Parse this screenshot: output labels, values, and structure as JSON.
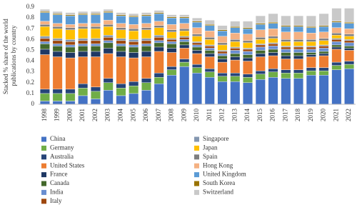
{
  "chart_data": {
    "type": "stacked_bar",
    "ylabel": [
      "Stacked % share of the world",
      "publications by country"
    ],
    "categories": [
      "1998",
      "1999",
      "2000",
      "2001",
      "2002",
      "2003",
      "2004",
      "2005",
      "2006",
      "2007",
      "2008",
      "2009",
      "2010",
      "2011",
      "2012",
      "2013",
      "2014",
      "2015",
      "2016",
      "2017",
      "2018",
      "2019",
      "2020",
      "2021",
      "2022"
    ],
    "ylim": [
      0,
      0.9
    ],
    "yticks": [
      0,
      0.1,
      0.2,
      0.3,
      0.4,
      0.5,
      0.6,
      0.7,
      0.8,
      0.9
    ],
    "series": [
      {
        "name": "China",
        "color": "#4472c4",
        "values": [
          0.03,
          0.03,
          0.03,
          0.08,
          0.05,
          0.13,
          0.08,
          0.1,
          0.13,
          0.19,
          0.27,
          0.35,
          0.29,
          0.25,
          0.21,
          0.21,
          0.2,
          0.23,
          0.25,
          0.24,
          0.24,
          0.27,
          0.27,
          0.32,
          0.33
        ]
      },
      {
        "name": "Germany",
        "color": "#70ad47",
        "values": [
          0.07,
          0.07,
          0.07,
          0.07,
          0.07,
          0.07,
          0.07,
          0.07,
          0.07,
          0.06,
          0.05,
          0.04,
          0.05,
          0.05,
          0.05,
          0.05,
          0.05,
          0.05,
          0.05,
          0.05,
          0.05,
          0.04,
          0.04,
          0.04,
          0.04
        ]
      },
      {
        "name": "Australia",
        "color": "#264478",
        "values": [
          0.04,
          0.04,
          0.04,
          0.04,
          0.04,
          0.04,
          0.04,
          0.04,
          0.04,
          0.04,
          0.03,
          0.03,
          0.03,
          0.03,
          0.03,
          0.03,
          0.03,
          0.03,
          0.03,
          0.03,
          0.03,
          0.03,
          0.03,
          0.03,
          0.03
        ]
      },
      {
        "name": "United States",
        "color": "#ed7d31",
        "values": [
          0.32,
          0.3,
          0.29,
          0.25,
          0.28,
          0.23,
          0.25,
          0.22,
          0.2,
          0.2,
          0.13,
          0.1,
          0.1,
          0.11,
          0.1,
          0.12,
          0.12,
          0.13,
          0.12,
          0.1,
          0.1,
          0.1,
          0.11,
          0.12,
          0.1
        ]
      },
      {
        "name": "France",
        "color": "#1f3864",
        "values": [
          0.05,
          0.05,
          0.05,
          0.05,
          0.05,
          0.05,
          0.05,
          0.05,
          0.05,
          0.04,
          0.04,
          0.03,
          0.03,
          0.03,
          0.03,
          0.03,
          0.03,
          0.03,
          0.03,
          0.03,
          0.03,
          0.02,
          0.02,
          0.02,
          0.02
        ]
      },
      {
        "name": "Canada",
        "color": "#43682b",
        "values": [
          0.05,
          0.05,
          0.05,
          0.05,
          0.05,
          0.05,
          0.05,
          0.05,
          0.05,
          0.04,
          0.04,
          0.03,
          0.03,
          0.03,
          0.03,
          0.03,
          0.03,
          0.03,
          0.03,
          0.03,
          0.03,
          0.02,
          0.02,
          0.02,
          0.02
        ]
      },
      {
        "name": "India",
        "color": "#698ed0",
        "values": [
          0.02,
          0.02,
          0.02,
          0.02,
          0.02,
          0.02,
          0.02,
          0.02,
          0.02,
          0.02,
          0.02,
          0.02,
          0.02,
          0.02,
          0.02,
          0.03,
          0.03,
          0.03,
          0.03,
          0.03,
          0.03,
          0.03,
          0.03,
          0.03,
          0.03
        ]
      },
      {
        "name": "Italy",
        "color": "#9e480e",
        "values": [
          0.03,
          0.03,
          0.03,
          0.03,
          0.03,
          0.03,
          0.03,
          0.03,
          0.03,
          0.03,
          0.02,
          0.02,
          0.02,
          0.02,
          0.02,
          0.02,
          0.02,
          0.02,
          0.02,
          0.02,
          0.02,
          0.02,
          0.02,
          0.02,
          0.02
        ]
      },
      {
        "name": "Singapore",
        "color": "#8497b0",
        "values": [
          0.02,
          0.02,
          0.02,
          0.02,
          0.02,
          0.02,
          0.02,
          0.02,
          0.02,
          0.02,
          0.01,
          0.01,
          0.01,
          0.01,
          0.01,
          0.01,
          0.01,
          0.01,
          0.01,
          0.01,
          0.01,
          0.01,
          0.01,
          0.01,
          0.01
        ]
      },
      {
        "name": "Japan",
        "color": "#ffc000",
        "values": [
          0.09,
          0.09,
          0.09,
          0.09,
          0.09,
          0.08,
          0.08,
          0.08,
          0.08,
          0.07,
          0.06,
          0.05,
          0.05,
          0.05,
          0.05,
          0.05,
          0.05,
          0.04,
          0.04,
          0.04,
          0.04,
          0.04,
          0.04,
          0.03,
          0.03
        ]
      },
      {
        "name": "Spain",
        "color": "#7f7f7f",
        "values": [
          0.02,
          0.02,
          0.02,
          0.02,
          0.02,
          0.02,
          0.02,
          0.02,
          0.02,
          0.02,
          0.02,
          0.02,
          0.02,
          0.02,
          0.02,
          0.02,
          0.02,
          0.02,
          0.02,
          0.02,
          0.02,
          0.02,
          0.02,
          0.02,
          0.02
        ]
      },
      {
        "name": "Hong Kong",
        "color": "#f4b183",
        "values": [
          0.03,
          0.03,
          0.03,
          0.03,
          0.03,
          0.04,
          0.04,
          0.04,
          0.04,
          0.04,
          0.05,
          0.05,
          0.06,
          0.06,
          0.06,
          0.06,
          0.06,
          0.07,
          0.07,
          0.07,
          0.07,
          0.06,
          0.06,
          0.05,
          0.05
        ]
      },
      {
        "name": "United Kingdom",
        "color": "#5b9bd5",
        "values": [
          0.08,
          0.08,
          0.08,
          0.08,
          0.08,
          0.07,
          0.07,
          0.07,
          0.07,
          0.07,
          0.06,
          0.05,
          0.05,
          0.05,
          0.05,
          0.05,
          0.05,
          0.05,
          0.05,
          0.05,
          0.05,
          0.05,
          0.05,
          0.05,
          0.05
        ]
      },
      {
        "name": "South Korea",
        "color": "#997300",
        "values": [
          0.01,
          0.01,
          0.01,
          0.01,
          0.01,
          0.01,
          0.01,
          0.01,
          0.01,
          0.01,
          0.01,
          0.01,
          0.01,
          0.01,
          0.01,
          0.01,
          0.01,
          0.01,
          0.01,
          0.01,
          0.01,
          0.01,
          0.01,
          0.01,
          0.01
        ]
      },
      {
        "name": "Switzerland",
        "color": "#c9c9c9",
        "values": [
          0.02,
          0.02,
          0.02,
          0.02,
          0.02,
          0.02,
          0.02,
          0.02,
          0.02,
          0.02,
          0.02,
          0.02,
          0.03,
          0.04,
          0.04,
          0.05,
          0.06,
          0.07,
          0.08,
          0.09,
          0.09,
          0.1,
          0.11,
          0.12,
          0.13
        ]
      }
    ]
  }
}
